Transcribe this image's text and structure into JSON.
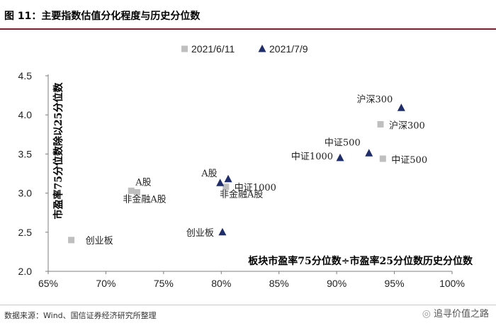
{
  "header": {
    "title": "图 11：主要指数估值分化程度与历史分位数"
  },
  "footer": {
    "source": "数据来源：Wind、国信证券经济研究所整理",
    "watermark": "追寻价值之路",
    "watermark_icon": "wechat-icon"
  },
  "colors": {
    "series_2021_6_11": "#bfbfbf",
    "series_2021_7_9": "#1f2d6b",
    "title_rule": "#7b1f2e"
  },
  "chart_data": {
    "type": "scatter",
    "title": "",
    "xlabel": "板块市盈率75分位数÷市盈率25分位数历史分位数",
    "ylabel": "市盈率75分位数除以25分位数",
    "xlim": [
      0.65,
      1.0
    ],
    "ylim": [
      2.0,
      4.5
    ],
    "x_ticks": [
      "65%",
      "70%",
      "75%",
      "80%",
      "85%",
      "90%",
      "95%",
      "100%"
    ],
    "y_ticks": [
      "2.0",
      "2.5",
      "3.0",
      "3.5",
      "4.0",
      "4.5"
    ],
    "x_tick_values": [
      0.65,
      0.7,
      0.75,
      0.8,
      0.85,
      0.9,
      0.95,
      1.0
    ],
    "y_tick_values": [
      2.0,
      2.5,
      3.0,
      3.5,
      4.0,
      4.5
    ],
    "grid": false,
    "legend_position": "top-center",
    "series": [
      {
        "name": "2021/6/11",
        "marker": "square",
        "points": [
          {
            "label": "沪深300",
            "x": 0.938,
            "y": 3.88
          },
          {
            "label": "中证500",
            "x": 0.94,
            "y": 3.44
          },
          {
            "label": "中证1000",
            "x": 0.804,
            "y": 3.08
          },
          {
            "label": "A股",
            "x": 0.722,
            "y": 3.03
          },
          {
            "label": "非金融A股",
            "x": 0.727,
            "y": 3.01
          },
          {
            "label": "创业板",
            "x": 0.67,
            "y": 2.4
          }
        ]
      },
      {
        "name": "2021/7/9",
        "marker": "triangle",
        "points": [
          {
            "label": "沪深300",
            "x": 0.956,
            "y": 4.09
          },
          {
            "label": "中证500",
            "x": 0.928,
            "y": 3.51
          },
          {
            "label": "中证1000",
            "x": 0.903,
            "y": 3.45
          },
          {
            "label": "A股",
            "x": 0.799,
            "y": 3.13
          },
          {
            "label": "非金融A股",
            "x": 0.806,
            "y": 3.18
          },
          {
            "label": "创业板",
            "x": 0.801,
            "y": 2.5
          }
        ]
      }
    ]
  }
}
